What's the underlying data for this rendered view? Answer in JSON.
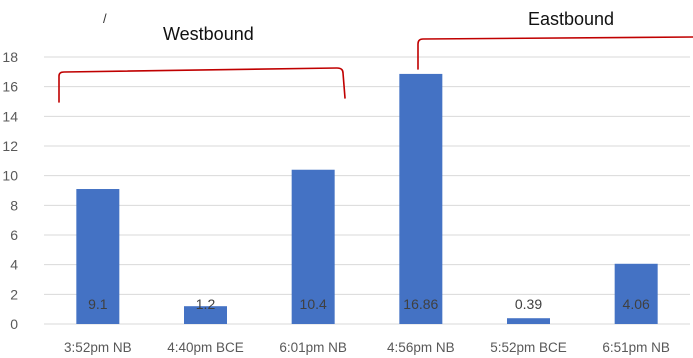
{
  "chart_data": {
    "type": "bar",
    "categories": [
      "3:52pm NB",
      "4:40pm BCE",
      "6:01pm NB",
      "4:56pm NB",
      "5:52pm BCE",
      "6:51pm NB"
    ],
    "values": [
      9.1,
      1.2,
      10.4,
      16.86,
      0.39,
      4.06
    ],
    "data_labels": [
      "9.1",
      "1.2",
      "10.4",
      "16.86",
      "0.39",
      "4.06"
    ],
    "yticks": [
      0,
      2,
      4,
      6,
      8,
      10,
      12,
      14,
      16,
      18
    ],
    "ytick_labels": [
      "0",
      "2",
      "4",
      "6",
      "8",
      "10",
      "12",
      "14",
      "16",
      "18"
    ],
    "ylim": [
      0,
      18
    ],
    "grid": true,
    "legend": "none",
    "annotations": [
      {
        "label": "Westbound",
        "spans": [
          "3:52pm NB",
          "4:40pm BCE",
          "6:01pm NB"
        ]
      },
      {
        "label": "Eastbound",
        "spans": [
          "4:56pm NB",
          "5:52pm BCE",
          "6:51pm NB"
        ]
      }
    ],
    "stray_mark": "/"
  },
  "colors": {
    "bar": "#4472C4",
    "bracket": "#C00000",
    "grid": "#D9D9D9"
  }
}
